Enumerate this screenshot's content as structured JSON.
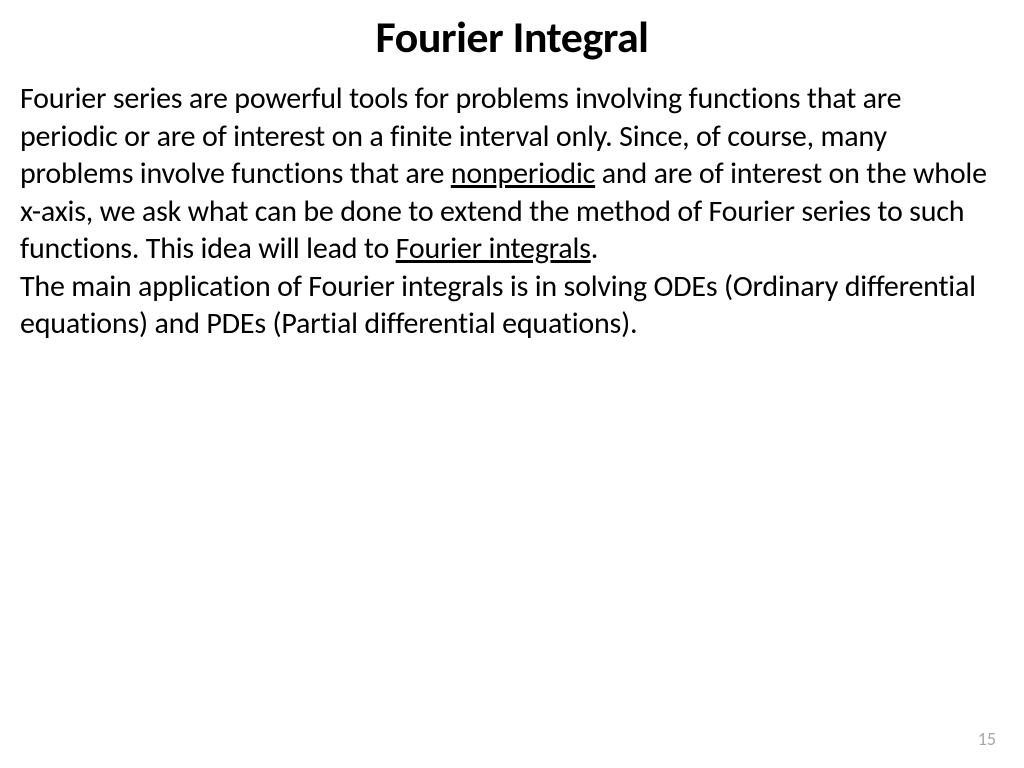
{
  "slide": {
    "title": "Fourier Integral",
    "paragraph1_part1": "Fourier series are powerful tools for problems involving functions that are periodic or are of interest on a finite interval only. Since, of course, many problems involve functions that are ",
    "underlined1": "nonperiodic",
    "paragraph1_part2": " and are of interest on the whole x-axis, we ask what can be done to extend the method of Fourier series to such functions. This idea will lead to ",
    "underlined2": "Fourier integrals",
    "paragraph1_part3": ".",
    "paragraph2": "The main application of Fourier integrals is in solving ODEs (Ordinary differential equations) and PDEs (Partial differential equations).",
    "page_number": "15"
  },
  "styles": {
    "title_fontsize": 44,
    "body_fontsize": 30,
    "pagenum_fontsize": 18,
    "text_color": "#000000",
    "pagenum_color": "#a6a6a6",
    "background_color": "#ffffff"
  }
}
